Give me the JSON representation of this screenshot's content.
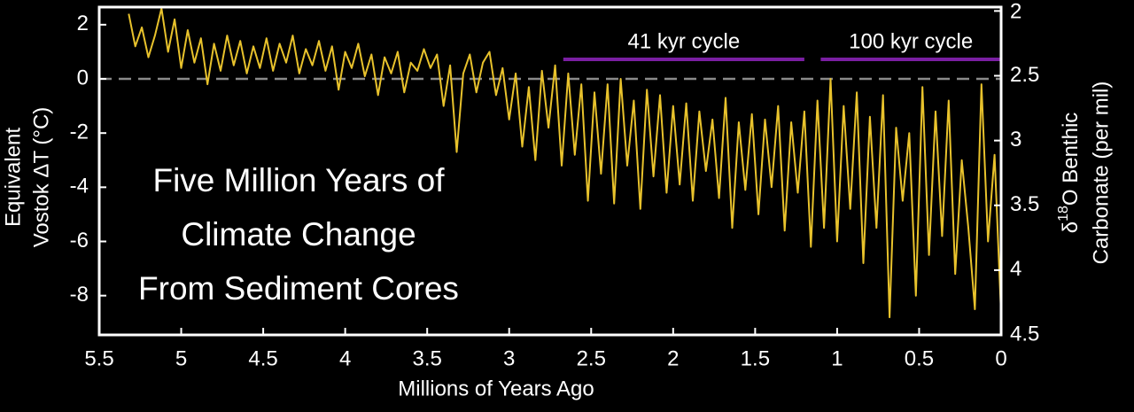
{
  "chart_data": {
    "type": "line",
    "title": [
      "Five Million Years of",
      "Climate Change",
      "From Sediment Cores"
    ],
    "x_label": "Millions of Years Ago",
    "y_label": [
      "Equivalent",
      "Vostok ΔT (°C)"
    ],
    "y2_label": [
      "δ",
      "18",
      "O Benthic",
      "Carbonate (per mil)"
    ],
    "color": "#e8c22c",
    "xlim": [
      5.5,
      0
    ],
    "xticks": [
      5.5,
      5,
      4.5,
      4,
      3.5,
      3,
      2.5,
      2,
      1.5,
      1,
      0.5,
      0
    ],
    "ylim": [
      -9.45,
      2.65
    ],
    "yticks": [
      2,
      0,
      -2,
      -4,
      -6,
      -8
    ],
    "y2lim": [
      4.5,
      1.97
    ],
    "y2ticks": [
      2,
      2.5,
      3,
      3.5,
      4,
      4.5
    ],
    "reference_line": 0,
    "annotations": [
      {
        "text": "41 kyr cycle",
        "x": [
          2.67,
          1.2
        ],
        "y": 0.72,
        "color": "#7a1fa2"
      },
      {
        "text": "100 kyr cycle",
        "x": [
          1.1,
          0
        ],
        "y": 0.72,
        "color": "#7a1fa2"
      }
    ],
    "x": [
      5.32,
      5.28,
      5.24,
      5.2,
      5.16,
      5.12,
      5.08,
      5.04,
      5,
      4.96,
      4.92,
      4.88,
      4.84,
      4.8,
      4.76,
      4.72,
      4.68,
      4.64,
      4.6,
      4.56,
      4.52,
      4.48,
      4.44,
      4.4,
      4.36,
      4.32,
      4.28,
      4.24,
      4.2,
      4.16,
      4.12,
      4.08,
      4.04,
      4,
      3.96,
      3.92,
      3.88,
      3.84,
      3.8,
      3.76,
      3.72,
      3.68,
      3.64,
      3.6,
      3.56,
      3.52,
      3.48,
      3.44,
      3.4,
      3.36,
      3.32,
      3.28,
      3.24,
      3.2,
      3.16,
      3.12,
      3.08,
      3.04,
      3,
      2.96,
      2.92,
      2.88,
      2.84,
      2.8,
      2.76,
      2.72,
      2.68,
      2.64,
      2.6,
      2.56,
      2.52,
      2.48,
      2.44,
      2.4,
      2.36,
      2.32,
      2.28,
      2.24,
      2.2,
      2.16,
      2.12,
      2.08,
      2.04,
      2,
      1.96,
      1.92,
      1.88,
      1.84,
      1.8,
      1.76,
      1.72,
      1.68,
      1.64,
      1.6,
      1.56,
      1.52,
      1.48,
      1.44,
      1.4,
      1.36,
      1.32,
      1.28,
      1.24,
      1.2,
      1.16,
      1.12,
      1.08,
      1.04,
      1,
      0.96,
      0.92,
      0.88,
      0.84,
      0.8,
      0.76,
      0.72,
      0.68,
      0.64,
      0.6,
      0.56,
      0.52,
      0.48,
      0.44,
      0.4,
      0.36,
      0.32,
      0.28,
      0.24,
      0.2,
      0.16,
      0.12,
      0.08,
      0.04,
      0
    ],
    "values": [
      2.4,
      1.2,
      1.9,
      0.8,
      1.6,
      2.6,
      1.0,
      2.2,
      0.4,
      1.8,
      0.6,
      1.5,
      -0.2,
      1.3,
      0.3,
      1.6,
      0.5,
      1.4,
      0.2,
      1.2,
      0.4,
      1.5,
      0.3,
      1.3,
      0.6,
      1.6,
      0.2,
      1.1,
      0.5,
      1.4,
      0.3,
      1.2,
      -0.4,
      1.0,
      0.4,
      1.3,
      0.1,
      0.9,
      -0.6,
      0.8,
      0.2,
      1.0,
      -0.5,
      0.6,
      0.3,
      1.1,
      0.4,
      0.9,
      -1.0,
      0.5,
      -2.7,
      0.2,
      0.9,
      -0.5,
      0.6,
      1.0,
      -0.6,
      0.4,
      -1.5,
      0.2,
      -2.5,
      -0.3,
      -3.0,
      0.3,
      -1.8,
      0.5,
      -3.2,
      0.2,
      -2.8,
      -0.2,
      -4.5,
      -0.5,
      -3.5,
      -0.2,
      -4.6,
      0.0,
      -3.2,
      -0.8,
      -4.8,
      -0.4,
      -3.6,
      -0.6,
      -4.2,
      -1.0,
      -3.9,
      -0.9,
      -4.5,
      -1.2,
      -3.4,
      -1.5,
      -4.4,
      -0.7,
      -5.5,
      -1.6,
      -4.1,
      -1.3,
      -5.0,
      -1.5,
      -4.0,
      -1.0,
      -5.6,
      -1.6,
      -4.2,
      -1.2,
      -6.2,
      -0.8,
      -5.5,
      0.0,
      -6.0,
      -1.0,
      -4.8,
      -0.5,
      -6.8,
      -1.4,
      -5.5,
      -0.6,
      -8.8,
      -1.8,
      -4.5,
      -2.0,
      -8.0,
      -0.3,
      -6.5,
      -1.2,
      -5.8,
      -0.8,
      -7.2,
      -3.0,
      -5.5,
      -8.5,
      -0.2,
      -6.0,
      -2.8,
      -8.7
    ]
  }
}
